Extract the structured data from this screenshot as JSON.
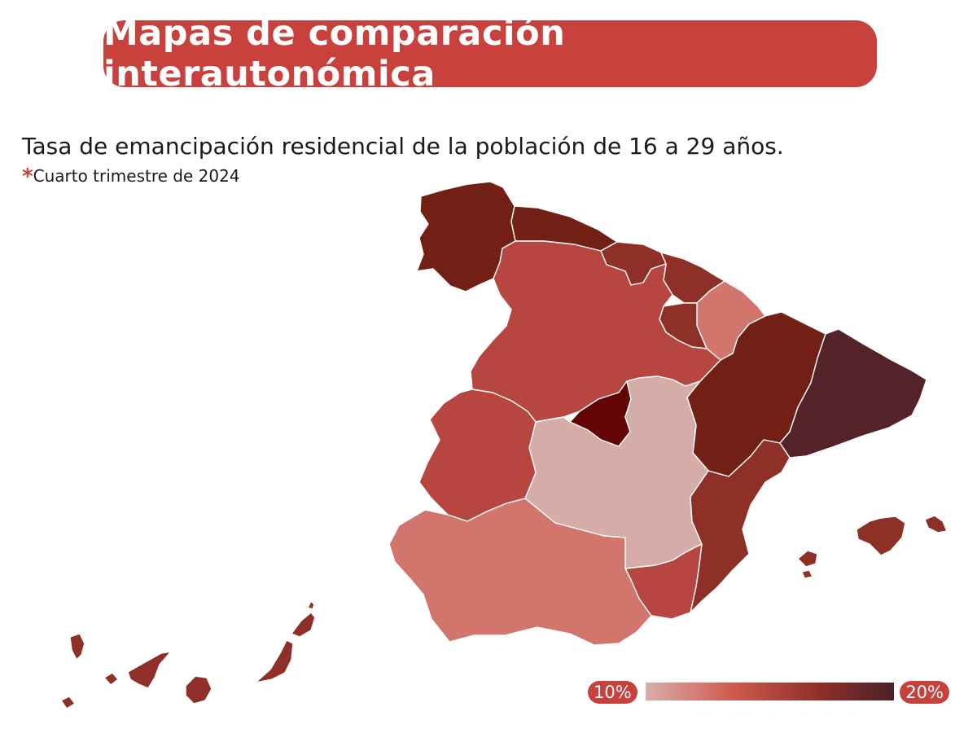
{
  "title": "Mapas de comparación interautonómica",
  "subtitle": "Tasa de emancipación residencial de la población de 16 a 29 años.",
  "note_marker": "*",
  "note": "Cuarto trimestre de 2024",
  "legend": {
    "min_label": "10%",
    "max_label": "20%",
    "min_value": 10,
    "max_value": 20,
    "color_low": "#d9aeaa",
    "color_high": "#4a2128"
  },
  "colors": {
    "accent": "#c8413c",
    "text": "#1a1a1a",
    "border": "#ffffff"
  },
  "regions": [
    {
      "id": "galicia",
      "color": "#722016"
    },
    {
      "id": "asturias",
      "color": "#722016"
    },
    {
      "id": "cantabria",
      "color": "#8e2f28"
    },
    {
      "id": "pais-vasco",
      "color": "#8e2f28"
    },
    {
      "id": "navarra",
      "color": "#d2766d"
    },
    {
      "id": "la-rioja",
      "color": "#8e2f28"
    },
    {
      "id": "aragon",
      "color": "#722016"
    },
    {
      "id": "cataluna",
      "color": "#532329"
    },
    {
      "id": "castilla-y-leon",
      "color": "#b84640"
    },
    {
      "id": "madrid",
      "color": "#620304"
    },
    {
      "id": "castilla-la-mancha",
      "color": "#d6aca8"
    },
    {
      "id": "extremadura",
      "color": "#b84640"
    },
    {
      "id": "comunitat-valenciana",
      "color": "#8e2f28"
    },
    {
      "id": "region-de-murcia",
      "color": "#b84640"
    },
    {
      "id": "andalucia",
      "color": "#d2766d"
    },
    {
      "id": "illes-balears",
      "color": "#8e2f28"
    },
    {
      "id": "canarias",
      "color": "#8e2f28"
    }
  ]
}
